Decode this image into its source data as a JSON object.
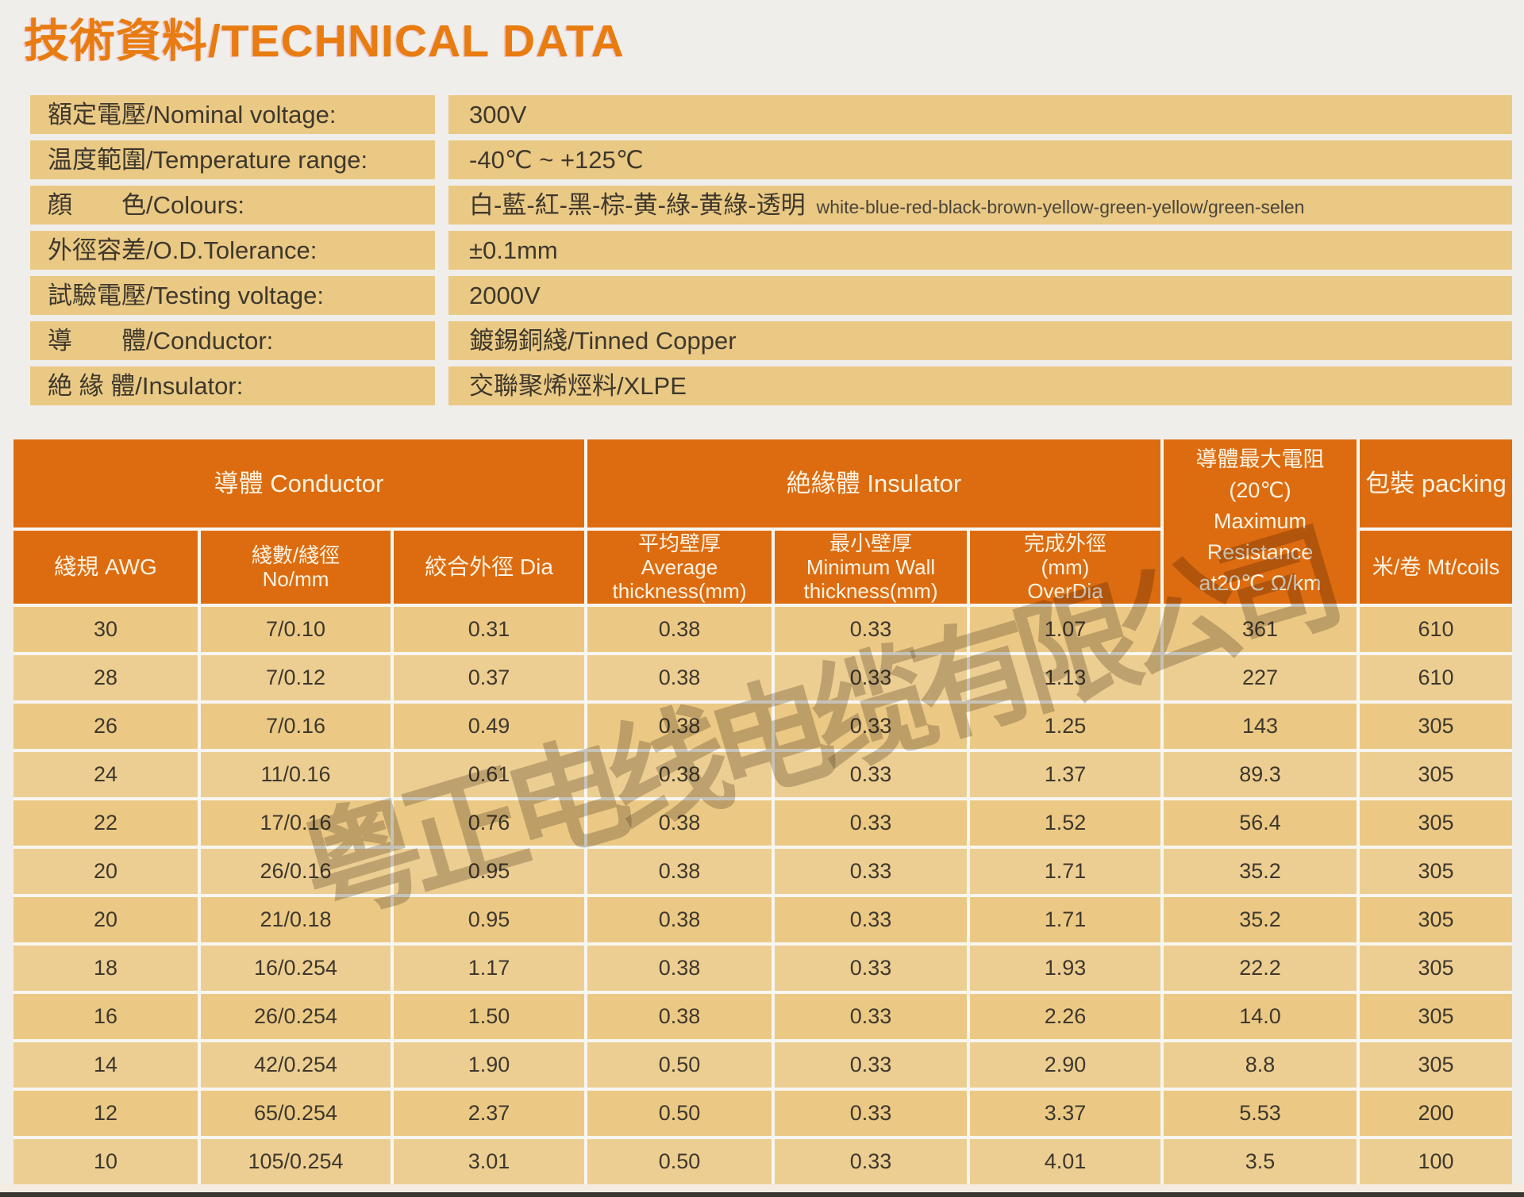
{
  "title": "技術資料/TECHNICAL DATA",
  "specs": {
    "rows": [
      {
        "label": "額定電壓/Nominal voltage:",
        "value": "300V"
      },
      {
        "label": "温度範圍/Temperature range:",
        "value": "-40℃ ~ +125℃"
      },
      {
        "label": "顔　　色/Colours:",
        "value": "白-藍-紅-黑-棕-黄-綠-黄綠-透明",
        "value_en": "white-blue-red-black-brown-yellow-green-yellow/green-selen"
      },
      {
        "label": "外徑容差/O.D.Tolerance:",
        "value": "±0.1mm"
      },
      {
        "label": "試驗電壓/Testing voltage:",
        "value": "2000V"
      },
      {
        "label": "導　　體/Conductor:",
        "value": "鍍錫銅綫/Tinned Copper"
      },
      {
        "label": "絶 緣 體/Insulator:",
        "value": "交聯聚烯烴料/XLPE"
      }
    ]
  },
  "table": {
    "groups": {
      "conductor": "導體  Conductor",
      "insulator": "絶緣體 Insulator",
      "packing": "包裝 packing"
    },
    "headers": {
      "awg": "綫規 AWG",
      "no_mm": "綫數/綫徑\nNo/mm",
      "dia": "絞合外徑 Dia",
      "avg": "平均壁厚\nAverage\nthickness(mm)",
      "min": "最小壁厚\nMinimum Wall\nthickness(mm)",
      "overdia": "完成外徑\n(mm)\nOverDia",
      "resistance": "導體最大電阻\n(20℃)\nMaximum\nResistance\nat20℃ Ω/km",
      "coils": "米/卷 Mt/coils"
    },
    "rows": [
      [
        "30",
        "7/0.10",
        "0.31",
        "0.38",
        "0.33",
        "1.07",
        "361",
        "610"
      ],
      [
        "28",
        "7/0.12",
        "0.37",
        "0.38",
        "0.33",
        "1.13",
        "227",
        "610"
      ],
      [
        "26",
        "7/0.16",
        "0.49",
        "0.38",
        "0.33",
        "1.25",
        "143",
        "305"
      ],
      [
        "24",
        "11/0.16",
        "0.61",
        "0.38",
        "0.33",
        "1.37",
        "89.3",
        "305"
      ],
      [
        "22",
        "17/0.16",
        "0.76",
        "0.38",
        "0.33",
        "1.52",
        "56.4",
        "305"
      ],
      [
        "20",
        "26/0.16",
        "0.95",
        "0.38",
        "0.33",
        "1.71",
        "35.2",
        "305"
      ],
      [
        "20",
        "21/0.18",
        "0.95",
        "0.38",
        "0.33",
        "1.71",
        "35.2",
        "305"
      ],
      [
        "18",
        "16/0.254",
        "1.17",
        "0.38",
        "0.33",
        "1.93",
        "22.2",
        "305"
      ],
      [
        "16",
        "26/0.254",
        "1.50",
        "0.38",
        "0.33",
        "2.26",
        "14.0",
        "305"
      ],
      [
        "14",
        "42/0.254",
        "1.90",
        "0.50",
        "0.33",
        "2.90",
        "8.8",
        "305"
      ],
      [
        "12",
        "65/0.254",
        "2.37",
        "0.50",
        "0.33",
        "3.37",
        "5.53",
        "200"
      ],
      [
        "10",
        "105/0.254",
        "3.01",
        "0.50",
        "0.33",
        "4.01",
        "3.5",
        "100"
      ]
    ]
  },
  "watermark": "粤正电线电缆有限公司",
  "colors": {
    "title_orange": "#e87c10",
    "header_orange": "#dd6c10",
    "cell_tan": "#ebc985",
    "text_dark": "#3e382c",
    "page_background": "#f0eeea"
  }
}
